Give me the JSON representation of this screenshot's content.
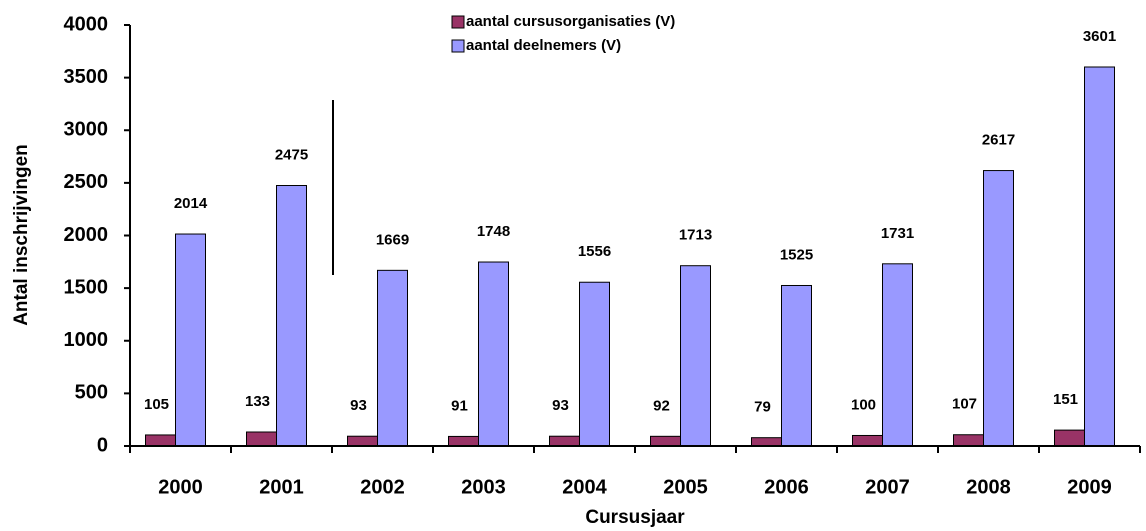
{
  "chart_data": {
    "type": "bar",
    "categories": [
      "2000",
      "2001",
      "2002",
      "2003",
      "2004",
      "2005",
      "2006",
      "2007",
      "2008",
      "2009"
    ],
    "series": [
      {
        "name": "aantal cursusorganisaties (V)",
        "color": "#993366",
        "values": [
          105,
          133,
          93,
          91,
          93,
          92,
          79,
          100,
          107,
          151
        ]
      },
      {
        "name": "aantal deelnemers (V)",
        "color": "#9999ff",
        "values": [
          2014,
          2475,
          1669,
          1748,
          1556,
          1713,
          1525,
          1731,
          2617,
          3601
        ]
      }
    ],
    "xlabel": "Cursusjaar",
    "ylabel": "Antal inschrijvingen",
    "ylim": [
      0,
      4000
    ],
    "yticks": [
      0,
      500,
      1000,
      1500,
      2000,
      2500,
      3000,
      3500,
      4000
    ],
    "grid": false,
    "legend": "top"
  }
}
